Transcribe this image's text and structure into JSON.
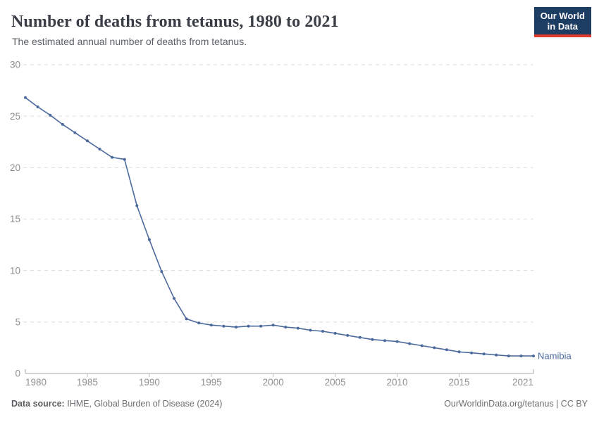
{
  "header": {
    "title": "Number of deaths from tetanus, 1980 to 2021",
    "subtitle": "The estimated annual number of deaths from tetanus.",
    "logo": {
      "line1": "Our World",
      "line2": "in Data",
      "bg_color": "#1d3d63",
      "accent_color": "#dd3a2b"
    }
  },
  "chart_data": {
    "type": "line",
    "title": "Number of deaths from tetanus, 1980 to 2021",
    "xlabel": "",
    "ylabel": "",
    "xlim": [
      1980,
      2021
    ],
    "ylim": [
      0,
      30
    ],
    "x_ticks": [
      1980,
      1985,
      1990,
      1995,
      2000,
      2005,
      2010,
      2015,
      2021
    ],
    "y_ticks": [
      0,
      5,
      10,
      15,
      20,
      25,
      30
    ],
    "grid": "horizontal-dashed",
    "legend_position": "line-end-label",
    "series": [
      {
        "name": "Namibia",
        "color": "#4c6a9c",
        "x": [
          1980,
          1981,
          1982,
          1983,
          1984,
          1985,
          1986,
          1987,
          1988,
          1989,
          1990,
          1991,
          1992,
          1993,
          1994,
          1995,
          1996,
          1997,
          1998,
          1999,
          2000,
          2001,
          2002,
          2003,
          2004,
          2005,
          2006,
          2007,
          2008,
          2009,
          2010,
          2011,
          2012,
          2013,
          2014,
          2015,
          2016,
          2017,
          2018,
          2019,
          2020,
          2021
        ],
        "values": [
          26.8,
          25.9,
          25.1,
          24.2,
          23.4,
          22.6,
          21.8,
          21.0,
          20.8,
          16.3,
          13.0,
          9.9,
          7.3,
          5.3,
          4.9,
          4.7,
          4.6,
          4.5,
          4.6,
          4.6,
          4.7,
          4.5,
          4.4,
          4.2,
          4.1,
          3.9,
          3.7,
          3.5,
          3.3,
          3.2,
          3.1,
          2.9,
          2.7,
          2.5,
          2.3,
          2.1,
          2.0,
          1.9,
          1.8,
          1.7,
          1.7,
          1.7
        ]
      }
    ]
  },
  "footer": {
    "datasource_label": "Data source:",
    "datasource_value": "IHME, Global Burden of Disease (2024)",
    "attribution": "OurWorldinData.org/tetanus | CC BY"
  }
}
